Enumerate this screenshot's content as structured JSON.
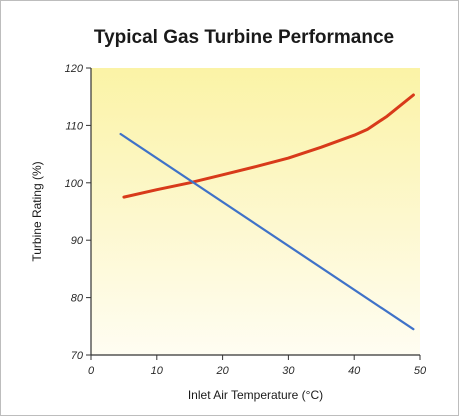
{
  "chart_data": {
    "type": "line",
    "title": "Typical Gas Turbine Performance",
    "xlabel": "Inlet Air Temperature (°C)",
    "ylabel": "Turbine Rating (%)",
    "xlim": [
      0,
      50
    ],
    "ylim": [
      70,
      120
    ],
    "x_ticks": [
      0,
      10,
      20,
      30,
      40,
      50
    ],
    "y_ticks": [
      70,
      80,
      90,
      100,
      110,
      120
    ],
    "grid": false,
    "legend": "none",
    "background": "yellow gradient (pale at bottom, light yellow at top)",
    "series": [
      {
        "color": "#d83a1a",
        "x": [
          5,
          10,
          15,
          20,
          25,
          30,
          35,
          40,
          42,
          45,
          49
        ],
        "y": [
          97.5,
          98.8,
          100.0,
          101.4,
          102.8,
          104.3,
          106.2,
          108.3,
          109.3,
          111.6,
          115.3
        ]
      },
      {
        "color": "#3f72c8",
        "x": [
          4.5,
          49
        ],
        "y": [
          108.5,
          74.5
        ]
      }
    ]
  }
}
